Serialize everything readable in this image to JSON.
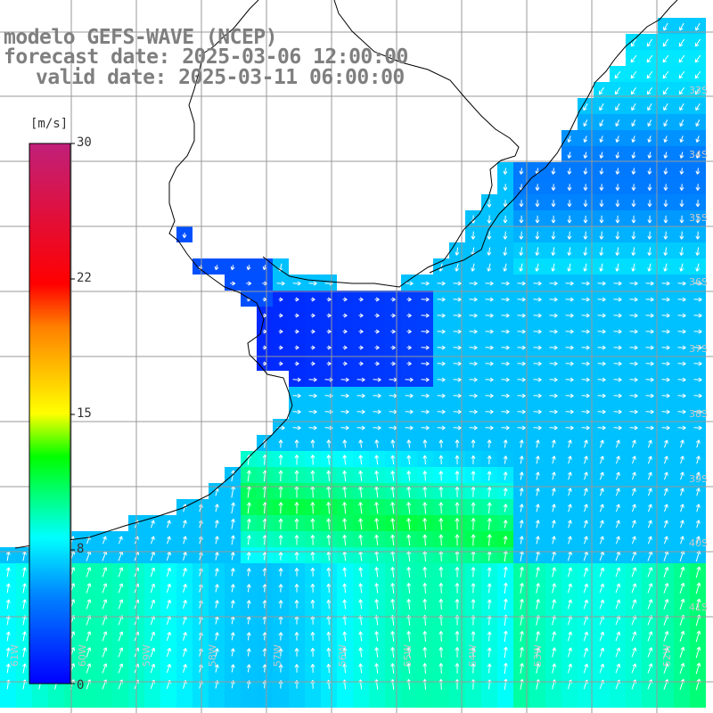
{
  "title": {
    "model": "modelo GEFS-WAVE (NCEP)",
    "forecast": "forecast date: 2025-03-06 12:00:00",
    "valid": "valid date: 2025-03-11 06:00:00"
  },
  "colorbar": {
    "unit": "[m/s]",
    "ticks": [
      "30",
      "22",
      "15",
      "8",
      "0"
    ],
    "stops": [
      "#0000ff",
      "#0080ff",
      "#00ffff",
      "#00ff00",
      "#ffff00",
      "#ff8000",
      "#ff0000",
      "#c00080"
    ]
  },
  "lat_labels": [
    "33S",
    "34S",
    "35S",
    "36S",
    "37S",
    "38S",
    "39S",
    "40S",
    "41S"
  ],
  "lon_labels": [
    "61W",
    "60W",
    "59W",
    "58W",
    "57W",
    "56W",
    "55W",
    "54W",
    "53W",
    "52W"
  ],
  "colors": {
    "grid": "#999999",
    "coast": "#000000",
    "arrow": "#ffffff",
    "title": "#7f7f7f"
  }
}
